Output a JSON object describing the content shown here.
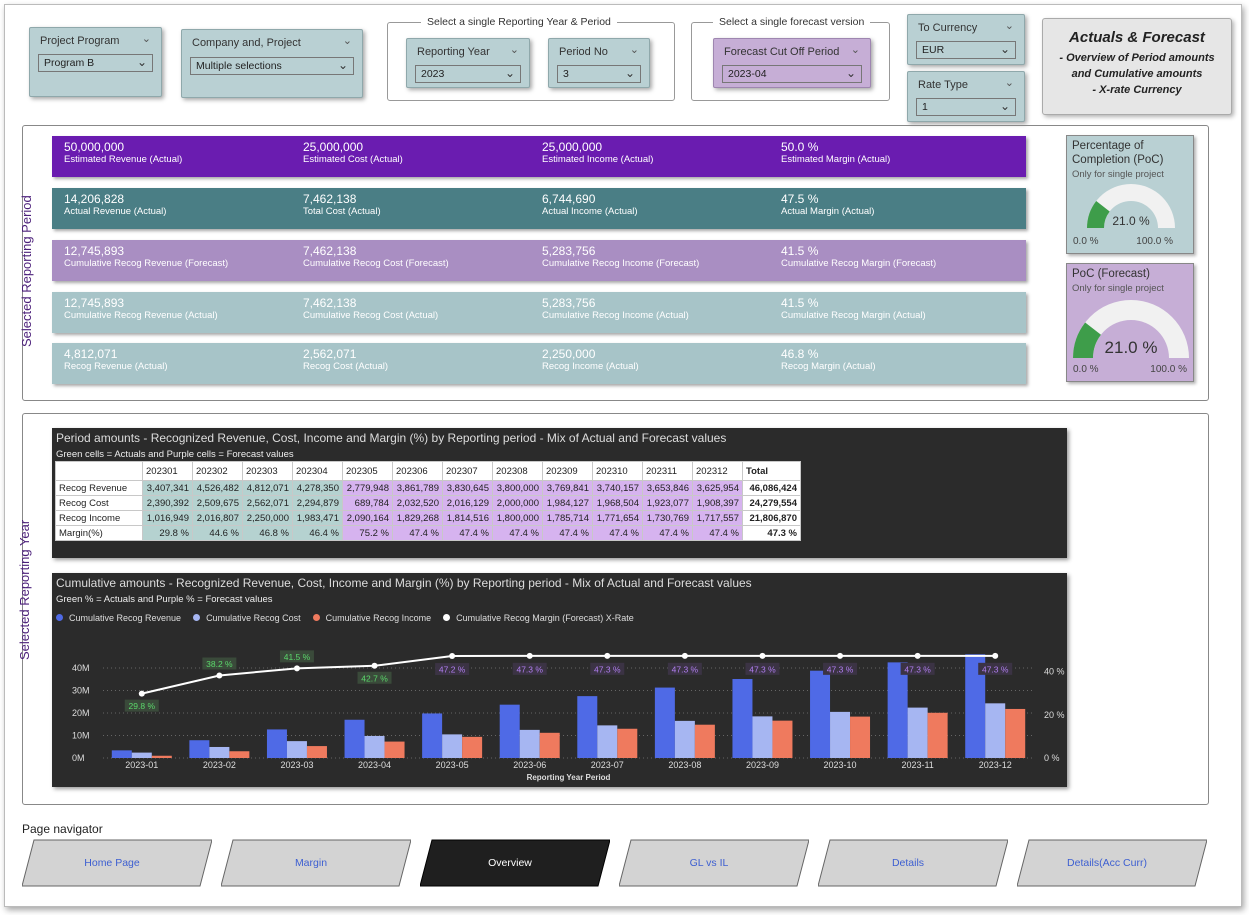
{
  "slicers": {
    "project_program": {
      "title": "Project Program",
      "value": "Program B"
    },
    "company_project": {
      "title": "Company and, Project",
      "value": "Multiple selections"
    },
    "group1_label": "Select a single Reporting Year & Period",
    "reporting_year": {
      "title": "Reporting Year",
      "value": "2023"
    },
    "period_no": {
      "title": "Period No",
      "value": "3"
    },
    "group2_label": "Select a single forecast version",
    "forecast_cutoff": {
      "title": "Forecast Cut Off Period",
      "value": "2023-04"
    },
    "to_currency": {
      "title": "To Currency",
      "value": "EUR"
    },
    "rate_type": {
      "title": "Rate Type",
      "value": "1"
    }
  },
  "title_card": {
    "title": "Actuals & Forecast",
    "line1": "- Overview of Period amounts",
    "line2": "and Cumulative amounts",
    "line3": "-  X-rate Currency"
  },
  "side_labels": {
    "period": "Selected Reporting Period",
    "year": "Selected Reporting Year"
  },
  "colors": {
    "actual_purple": "#6a1cb0",
    "actual_teal": "#4a7e85",
    "forecast_purple": "#a98ec2",
    "light_teal": "#a7c4c8",
    "revenue": "#4f6ae6",
    "cost": "#a6b6f2",
    "income": "#ef7a5e",
    "gauge_green": "#3e9d4a"
  },
  "kpi_rows": [
    {
      "cells": [
        {
          "value": "50,000,000",
          "label": "Estimated Revenue (Actual)"
        },
        {
          "value": "25,000,000",
          "label": "Estimated Cost (Actual)"
        },
        {
          "value": "25,000,000",
          "label": "Estimated Income (Actual)"
        },
        {
          "value": "50.0 %",
          "label": "Estimated Margin (Actual)"
        }
      ]
    },
    {
      "cells": [
        {
          "value": "14,206,828",
          "label": "Actual Revenue (Actual)"
        },
        {
          "value": "7,462,138",
          "label": "Total Cost (Actual)"
        },
        {
          "value": "6,744,690",
          "label": "Actual Income (Actual)"
        },
        {
          "value": "47.5 %",
          "label": "Actual Margin (Actual)"
        }
      ]
    },
    {
      "cells": [
        {
          "value": "12,745,893",
          "label": "Cumulative Recog Revenue (Forecast)"
        },
        {
          "value": "7,462,138",
          "label": "Cumulative Recog Cost (Forecast)"
        },
        {
          "value": "5,283,756",
          "label": "Cumulative Recog Income (Forecast)"
        },
        {
          "value": "41.5 %",
          "label": "Cumulative Recog Margin (Forecast)"
        }
      ]
    },
    {
      "cells": [
        {
          "value": "12,745,893",
          "label": "Cumulative Recog Revenue (Actual)"
        },
        {
          "value": "7,462,138",
          "label": "Cumulative Recog Cost (Actual)"
        },
        {
          "value": "5,283,756",
          "label": "Cumulative Recog Income (Actual)"
        },
        {
          "value": "41.5 %",
          "label": "Cumulative Recog Margin (Actual)"
        }
      ]
    },
    {
      "cells": [
        {
          "value": "4,812,071",
          "label": "Recog Revenue (Actual)"
        },
        {
          "value": "2,562,071",
          "label": "Recog Cost (Actual)"
        },
        {
          "value": "2,250,000",
          "label": "Recog Income (Actual)"
        },
        {
          "value": "46.8 %",
          "label": "Recog Margin (Actual)"
        }
      ]
    }
  ],
  "gauges": [
    {
      "title": "Percentage of Completion (PoC)",
      "subtitle": "Only for single project",
      "value": "21.0 %",
      "fraction": 0.21,
      "min": "0.0 %",
      "max": "100.0 %"
    },
    {
      "title": "PoC (Forecast)",
      "subtitle": "Only for single project",
      "value": "21.0 %",
      "fraction": 0.21,
      "min": "0.0 %",
      "max": "100.0 %"
    }
  ],
  "matrix": {
    "title": "Period amounts  - Recognized Revenue, Cost, Income and Margin (%) by Reporting period - Mix of Actual and Forecast values",
    "subtitle": "Green cells = Actuals and Purple cells = Forecast values",
    "columns": [
      "202301",
      "202302",
      "202303",
      "202304",
      "202305",
      "202306",
      "202307",
      "202308",
      "202309",
      "202310",
      "202311",
      "202312",
      "Total"
    ],
    "actual_count": 4,
    "rows": [
      {
        "label": "Recog Revenue",
        "values": [
          "3,407,341",
          "4,526,482",
          "4,812,071",
          "4,278,350",
          "2,779,948",
          "3,861,789",
          "3,830,645",
          "3,800,000",
          "3,769,841",
          "3,740,157",
          "3,653,846",
          "3,625,954",
          "46,086,424"
        ]
      },
      {
        "label": "Recog Cost",
        "values": [
          "2,390,392",
          "2,509,675",
          "2,562,071",
          "2,294,879",
          "689,784",
          "2,032,520",
          "2,016,129",
          "2,000,000",
          "1,984,127",
          "1,968,504",
          "1,923,077",
          "1,908,397",
          "24,279,554"
        ]
      },
      {
        "label": "Recog Income",
        "values": [
          "1,016,949",
          "2,016,807",
          "2,250,000",
          "1,983,471",
          "2,090,164",
          "1,829,268",
          "1,814,516",
          "1,800,000",
          "1,785,714",
          "1,771,654",
          "1,730,769",
          "1,717,557",
          "21,806,870"
        ]
      },
      {
        "label": "Margin(%)",
        "values": [
          "29.8 %",
          "44.6 %",
          "46.8 %",
          "46.4 %",
          "75.2 %",
          "47.4 %",
          "47.4 %",
          "47.4 %",
          "47.4 %",
          "47.4 %",
          "47.4 %",
          "47.4 %",
          "47.3 %"
        ]
      }
    ]
  },
  "chart_data": {
    "type": "bar",
    "title": "Cumulative amounts - Recognized Revenue, Cost, Income and Margin (%) by Reporting period - Mix of Actual and Forecast values",
    "subtitle": "Green % = Actuals and Purple % = Forecast values",
    "xlabel": "Reporting Year Period",
    "categories": [
      "2023-01",
      "2023-02",
      "2023-03",
      "2023-04",
      "2023-05",
      "2023-06",
      "2023-07",
      "2023-08",
      "2023-09",
      "2023-10",
      "2023-11",
      "2023-12"
    ],
    "series": [
      {
        "name": "Cumulative Recog Revenue",
        "values": [
          3.4,
          7.9,
          12.7,
          17.0,
          19.8,
          23.7,
          27.5,
          31.3,
          35.1,
          38.8,
          42.5,
          46.1
        ]
      },
      {
        "name": "Cumulative Recog Cost",
        "values": [
          2.4,
          4.9,
          7.5,
          9.8,
          10.5,
          12.5,
          14.5,
          16.5,
          18.5,
          20.5,
          22.4,
          24.3
        ]
      },
      {
        "name": "Cumulative Recog Income",
        "values": [
          1.0,
          3.0,
          5.3,
          7.3,
          9.4,
          11.2,
          13.0,
          14.8,
          16.6,
          18.4,
          20.1,
          21.8
        ]
      },
      {
        "name": "Cumulative Recog Margin (Forecast) X-Rate",
        "axis": "right",
        "values": [
          29.8,
          38.2,
          41.5,
          42.7,
          47.2,
          47.3,
          47.3,
          47.3,
          47.3,
          47.3,
          47.3,
          47.3
        ]
      }
    ],
    "margin_labels": [
      "29.8 %",
      "38.2 %",
      "41.5 %",
      "42.7 %",
      "47.2 %",
      "47.3 %",
      "47.3 %",
      "47.3 %",
      "47.3 %",
      "47.3 %",
      "47.3 %",
      "47.3 %"
    ],
    "label_kind": [
      "actual",
      "actual",
      "actual",
      "actual",
      "forecast",
      "forecast",
      "forecast",
      "forecast",
      "forecast",
      "forecast",
      "forecast",
      "forecast"
    ],
    "y_ticks": [
      "0M",
      "10M",
      "20M",
      "30M",
      "40M"
    ],
    "y2_ticks": [
      "0 %",
      "20 %",
      "40 %"
    ],
    "ylim": [
      0,
      48
    ],
    "y2lim": [
      0,
      50
    ],
    "grid": true,
    "legend": "top-left"
  },
  "nav": {
    "title": "Page navigator",
    "buttons": [
      "Home Page",
      "Margin",
      "Overview",
      "GL vs IL",
      "Details",
      "Details(Acc Curr)"
    ],
    "active": 2
  }
}
